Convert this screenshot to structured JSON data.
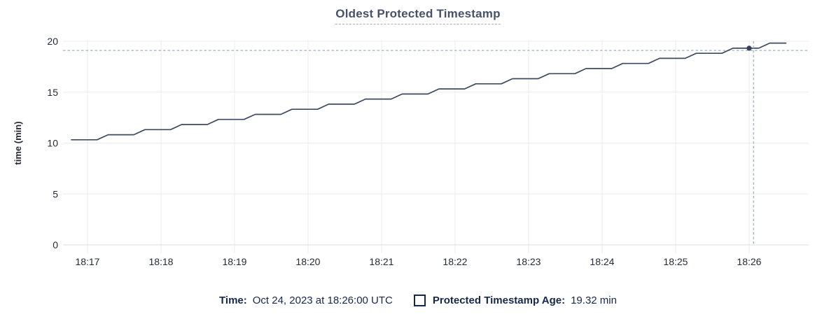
{
  "title": "Oldest Protected Timestamp",
  "legend": {
    "time_label": "Time:",
    "time_value": "Oct 24, 2023 at 18:26:00 UTC",
    "series_label": "Protected Timestamp Age:",
    "series_value": "19.32 min"
  },
  "colors": {
    "navy_text": "#152849",
    "title_text": "#475168",
    "tick_text": "#242a35",
    "series_line": "#3e4a5e",
    "crosshair": "#9fb1bf",
    "gridline": "#ececee",
    "background": "#ffffff"
  },
  "chart_data": {
    "type": "line",
    "title": "Oldest Protected Timestamp",
    "xlabel": "",
    "ylabel": "time (min)",
    "x_unit": "minutes after 18:00 UTC",
    "xlim": [
      16.667,
      26.81
    ],
    "ylim": [
      0,
      20
    ],
    "grid": true,
    "legend_position": "bottom",
    "xticks": [
      {
        "t": 17,
        "label": "18:17"
      },
      {
        "t": 18,
        "label": "18:18"
      },
      {
        "t": 19,
        "label": "18:19"
      },
      {
        "t": 20,
        "label": "18:20"
      },
      {
        "t": 21,
        "label": "18:21"
      },
      {
        "t": 22,
        "label": "18:22"
      },
      {
        "t": 23,
        "label": "18:23"
      },
      {
        "t": 24,
        "label": "18:24"
      },
      {
        "t": 25,
        "label": "18:25"
      },
      {
        "t": 26,
        "label": "18:26"
      }
    ],
    "yticks": [
      {
        "v": 0,
        "label": "0"
      },
      {
        "v": 5,
        "label": "5"
      },
      {
        "v": 10,
        "label": "10"
      },
      {
        "v": 15,
        "label": "15"
      },
      {
        "v": 20,
        "label": "20"
      }
    ],
    "series": [
      {
        "name": "Protected Timestamp Age",
        "points": [
          [
            16.78,
            10.32
          ],
          [
            17.13,
            10.32
          ],
          [
            17.28,
            10.82
          ],
          [
            17.63,
            10.82
          ],
          [
            17.78,
            11.32
          ],
          [
            18.13,
            11.32
          ],
          [
            18.28,
            11.82
          ],
          [
            18.63,
            11.82
          ],
          [
            18.78,
            12.32
          ],
          [
            19.13,
            12.32
          ],
          [
            19.28,
            12.82
          ],
          [
            19.63,
            12.82
          ],
          [
            19.78,
            13.32
          ],
          [
            20.13,
            13.32
          ],
          [
            20.28,
            13.82
          ],
          [
            20.63,
            13.82
          ],
          [
            20.78,
            14.32
          ],
          [
            21.13,
            14.32
          ],
          [
            21.28,
            14.82
          ],
          [
            21.63,
            14.82
          ],
          [
            21.78,
            15.32
          ],
          [
            22.13,
            15.32
          ],
          [
            22.28,
            15.82
          ],
          [
            22.63,
            15.82
          ],
          [
            22.78,
            16.32
          ],
          [
            23.13,
            16.32
          ],
          [
            23.28,
            16.82
          ],
          [
            23.63,
            16.82
          ],
          [
            23.78,
            17.32
          ],
          [
            24.13,
            17.32
          ],
          [
            24.28,
            17.82
          ],
          [
            24.63,
            17.82
          ],
          [
            24.78,
            18.32
          ],
          [
            25.13,
            18.32
          ],
          [
            25.28,
            18.82
          ],
          [
            25.63,
            18.82
          ],
          [
            25.78,
            19.32
          ],
          [
            26.13,
            19.32
          ],
          [
            26.28,
            19.82
          ],
          [
            26.5,
            19.82
          ]
        ]
      }
    ],
    "crosshair": {
      "vline_t": 26.06,
      "hline_v": 19.1,
      "dot_t": 26.0,
      "dot_v": 19.32,
      "hover_time": "18:26:00",
      "hover_value": "19.32 min"
    }
  }
}
